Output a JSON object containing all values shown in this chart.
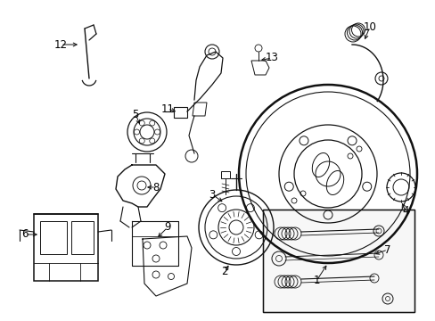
{
  "background_color": "#ffffff",
  "fig_width": 4.89,
  "fig_height": 3.6,
  "dpi": 100,
  "line_color": "#111111",
  "text_color": "#000000",
  "font_size": 8.5
}
